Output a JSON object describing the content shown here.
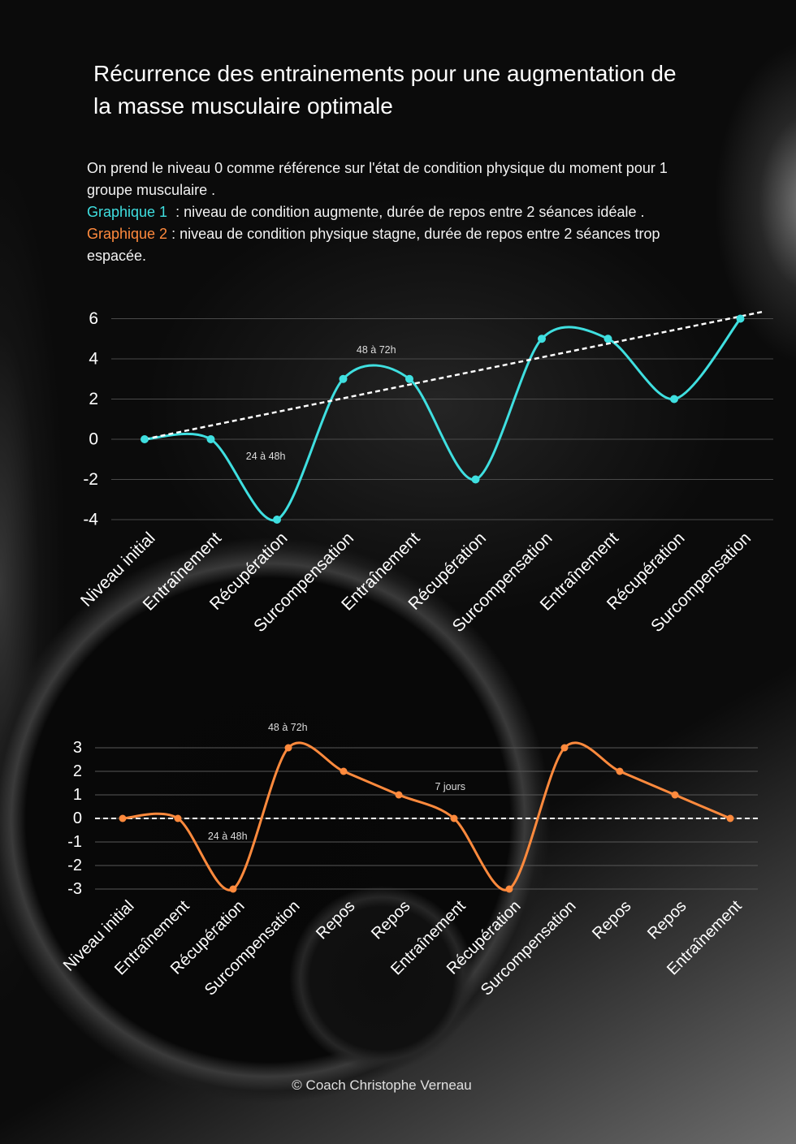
{
  "title": "Récurrence des entrainements pour une augmentation de la masse musculaire optimale",
  "intro": {
    "reference": "On prend le niveau 0 comme référence sur l'état de condition physique du moment pour 1 groupe musculaire .",
    "graph1_text": "  : niveau de condition augmente, durée de repos entre 2 séances idéale .",
    "graph2_text": " : niveau de condition physique stagne, durée de repos entre 2 séances trop espacée."
  },
  "colors": {
    "background": "#0b0b0b",
    "text": "#ffffff",
    "annotation": "#dddddd"
  },
  "chart_data": [
    {
      "type": "line",
      "categories": [
        "Niveau initial",
        "Entraînement",
        "Récupération",
        "Surcompensation",
        "Entraînement",
        "Récupération",
        "Surcompensation",
        "Entraînement",
        "Récupération",
        "Surcompensation"
      ],
      "series": [
        {
          "name": "Graphique 1",
          "values": [
            0,
            0,
            -4,
            3,
            3,
            -2,
            5,
            5,
            2,
            6
          ],
          "color": "#3fdfe0",
          "smooth": true
        }
      ],
      "trendline": {
        "dashed": true,
        "color": "#ffffff",
        "from": [
          0,
          0
        ],
        "to": [
          9.33,
          6.34
        ]
      },
      "ylim": [
        -4,
        6
      ],
      "yticks": [
        6,
        4,
        2,
        0,
        -2,
        -4
      ],
      "grid": true,
      "annotations": [
        {
          "text": "24 à 48h",
          "x": 1.83,
          "y": -0.85
        },
        {
          "text": "48 à 72h",
          "x": 3.5,
          "y": 4.44
        }
      ]
    },
    {
      "type": "line",
      "categories": [
        "Niveau initial",
        "Entraînement",
        "Récupération",
        "Surcompensation",
        "Repos",
        "Repos",
        "Entraînement",
        "Récupération",
        "Surcompensation",
        "Repos",
        "Repos",
        "Entraînement"
      ],
      "series": [
        {
          "name": "Graphique 2",
          "values": [
            0,
            0,
            -3,
            3,
            2,
            1,
            0,
            -3,
            3,
            2,
            1,
            0
          ],
          "color": "#ff8a3d",
          "smooth": true
        }
      ],
      "reference_line": {
        "y": 0,
        "dashed": true,
        "color": "#ffffff"
      },
      "ylim": [
        -3,
        3
      ],
      "yticks": [
        3,
        2,
        1,
        0,
        -1,
        -2,
        -3
      ],
      "grid": true,
      "annotations": [
        {
          "text": "48 à 72h",
          "x": 2.99,
          "y": 3.86
        },
        {
          "text": "24 à 48h",
          "x": 1.9,
          "y": -0.76
        },
        {
          "text": "7 jours",
          "x": 5.93,
          "y": 1.34
        }
      ]
    }
  ],
  "footer": "© Coach Christophe Verneau"
}
